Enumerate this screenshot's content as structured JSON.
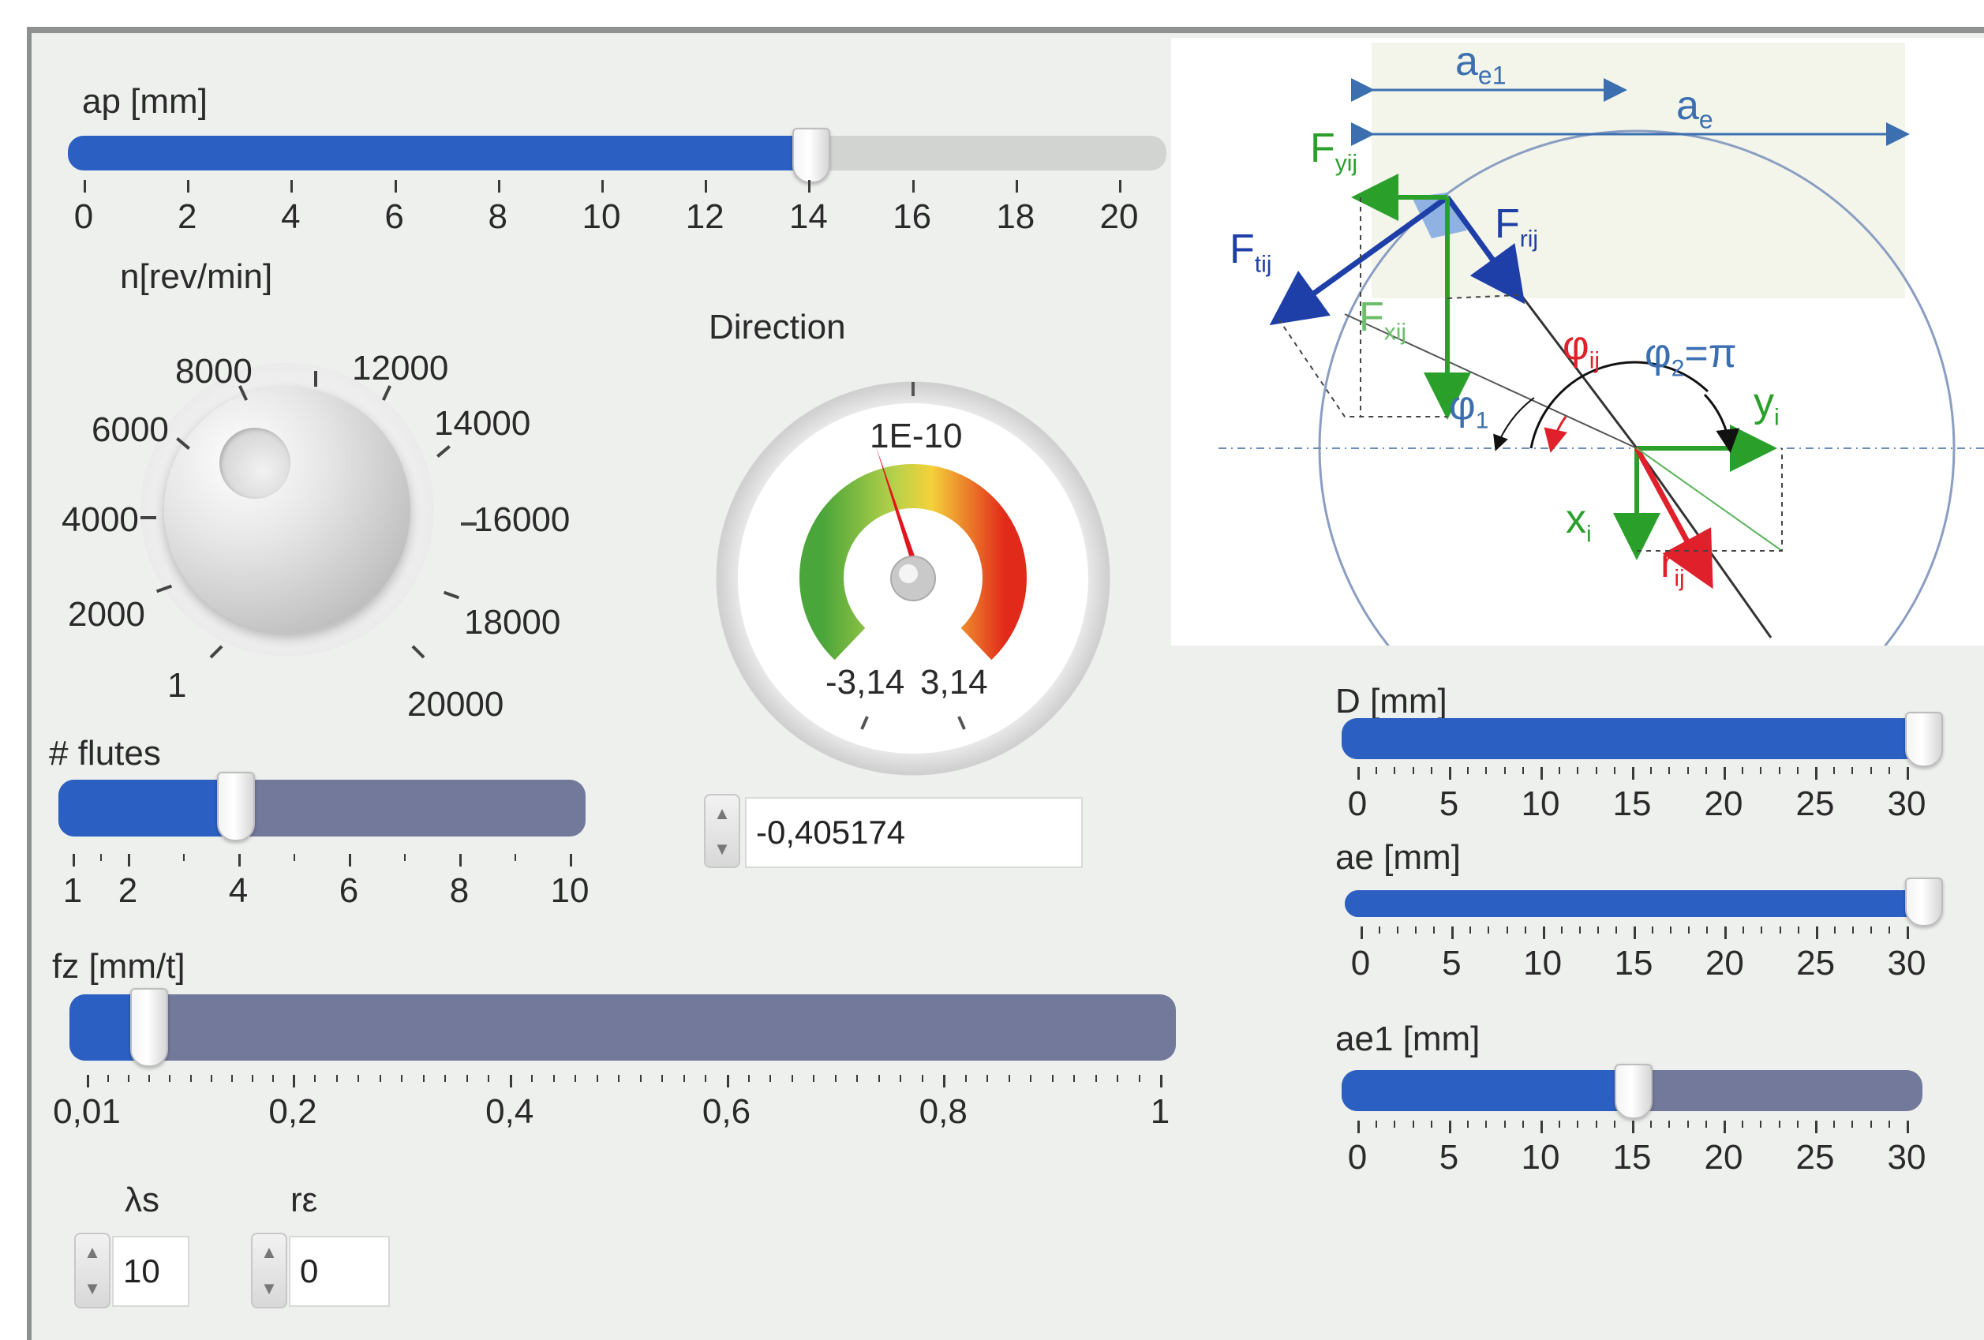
{
  "ap_slider": {
    "label": "ap [mm]",
    "value": 13.5,
    "min": 0,
    "max": 20,
    "ticks": [
      "0",
      "2",
      "4",
      "6",
      "8",
      "10",
      "12",
      "14",
      "16",
      "18",
      "20"
    ]
  },
  "speed_knob": {
    "label": "n[rev/min]",
    "ticks": [
      "1",
      "2000",
      "4000",
      "6000",
      "8000",
      "12000",
      "14000",
      "16000",
      "18000",
      "20000"
    ]
  },
  "direction_gauge": {
    "label": "Direction",
    "top_value": "1E-10",
    "min_label": "-3,14",
    "max_label": "3,14",
    "value": -0.405174
  },
  "direction_numeric": {
    "value": "-0,405174"
  },
  "flutes_slider": {
    "label": "# flutes",
    "value": 4,
    "min": 1,
    "max": 10,
    "ticks": [
      "1",
      "2",
      "4",
      "6",
      "8",
      "10"
    ]
  },
  "fz_slider": {
    "label": "fz [mm/t]",
    "value": 0.08,
    "min": 0.01,
    "max": 1,
    "ticks": [
      "0,01",
      "0,2",
      "0,4",
      "0,6",
      "0,8",
      "1"
    ]
  },
  "lambda_s": {
    "label": "λs",
    "value": "10"
  },
  "r_epsilon": {
    "label": "rε",
    "value": "0"
  },
  "D_slider": {
    "label": "D [mm]",
    "value": 30,
    "min": 0,
    "max": 30,
    "ticks": [
      "0",
      "5",
      "10",
      "15",
      "20",
      "25",
      "30"
    ]
  },
  "ae_slider": {
    "label": "ae [mm]",
    "value": 30,
    "min": 0,
    "max": 30,
    "ticks": [
      "0",
      "5",
      "10",
      "15",
      "20",
      "25",
      "30"
    ]
  },
  "ae1_slider": {
    "label": "ae1 [mm]",
    "value": 15,
    "min": 0,
    "max": 30,
    "ticks": [
      "0",
      "5",
      "10",
      "15",
      "20",
      "25",
      "30"
    ]
  },
  "diagram": {
    "ae1_label": "a",
    "ae1_sub": "e1",
    "ae_label": "a",
    "ae_sub": "e",
    "fyij_label": "F",
    "fyij_sub": "yij",
    "ftij_label": "F",
    "ftij_sub": "tij",
    "frij_label": "F",
    "frij_sub": "rij",
    "fxij_label": "F",
    "fxij_sub": "xij",
    "phiij_label": "φ",
    "phiij_sub": "ij",
    "phi2_label": "φ",
    "phi2_sub": "2",
    "phi2_eq": "=π",
    "phi1_label": "φ",
    "phi1_sub": "1",
    "yi_label": "y",
    "yi_sub": "i",
    "xi_label": "x",
    "xi_sub": "i",
    "rij_label": "r",
    "rij_sub": "ij",
    "colors": {
      "blue": "#1f3fa8",
      "green": "#2aa02a",
      "red": "#e0202a"
    }
  }
}
